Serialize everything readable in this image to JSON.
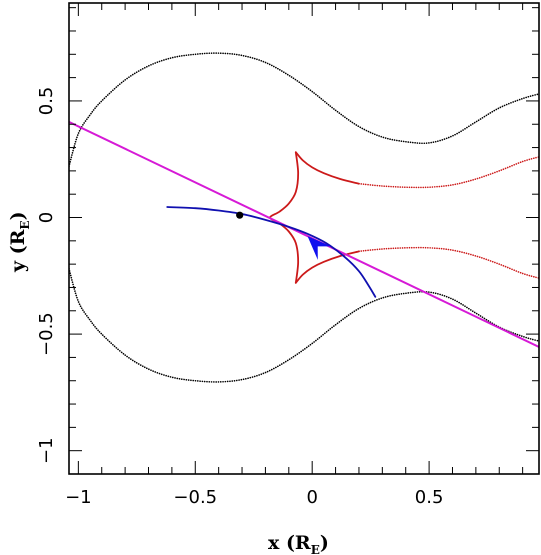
{
  "chart_data": {
    "type": "line",
    "title": "",
    "xlabel": "x (R",
    "xlabel_sub": "E",
    "xlabel_close": ")",
    "ylabel": "y (R",
    "ylabel_sub": "E",
    "ylabel_close": ")",
    "xlim": [
      -1.04,
      0.97
    ],
    "ylim": [
      -1.1,
      0.92
    ],
    "grid": false,
    "x_ticks": [
      -1,
      -0.5,
      0,
      0.5
    ],
    "x_tick_labels": [
      "−1",
      "−0.5",
      "0",
      "0.5"
    ],
    "y_ticks": [
      -1,
      -0.5,
      0,
      0.5
    ],
    "y_tick_labels": [
      "−1",
      "−0.5",
      "0",
      "0.5"
    ],
    "colors": {
      "critical": "#000000",
      "caustic": "#cc1a1a",
      "source_track": "#d61ad6",
      "lens_track": "#1010b0",
      "arrow": "#1010ee",
      "point": "#000000"
    },
    "series": [
      {
        "role": "critical-curve-upper",
        "style": "dotted",
        "x": [
          -1.04,
          -1.0,
          -0.95,
          -0.9,
          -0.8,
          -0.7,
          -0.6,
          -0.5,
          -0.4,
          -0.3,
          -0.2,
          -0.1,
          0.0,
          0.1,
          0.2,
          0.3,
          0.4,
          0.5,
          0.6,
          0.7,
          0.8,
          0.9,
          0.97
        ],
        "y": [
          0.22,
          0.36,
          0.44,
          0.5,
          0.59,
          0.65,
          0.685,
          0.7,
          0.705,
          0.695,
          0.665,
          0.61,
          0.54,
          0.46,
          0.39,
          0.345,
          0.325,
          0.32,
          0.35,
          0.41,
          0.47,
          0.51,
          0.53
        ]
      },
      {
        "role": "critical-curve-lower",
        "style": "dotted",
        "x": [
          -1.04,
          -1.0,
          -0.95,
          -0.9,
          -0.8,
          -0.7,
          -0.6,
          -0.5,
          -0.4,
          -0.3,
          -0.2,
          -0.1,
          0.0,
          0.1,
          0.2,
          0.3,
          0.4,
          0.5,
          0.6,
          0.7,
          0.8,
          0.9,
          0.97
        ],
        "y": [
          -0.22,
          -0.36,
          -0.44,
          -0.5,
          -0.59,
          -0.65,
          -0.685,
          -0.7,
          -0.705,
          -0.695,
          -0.665,
          -0.61,
          -0.54,
          -0.46,
          -0.39,
          -0.345,
          -0.325,
          -0.32,
          -0.35,
          -0.41,
          -0.47,
          -0.51,
          -0.53
        ]
      },
      {
        "role": "caustic-left",
        "style": "solid",
        "x": [
          -0.07,
          -0.06,
          -0.07,
          -0.1,
          -0.14,
          -0.18,
          -0.14,
          -0.1,
          -0.07,
          -0.06,
          -0.07
        ],
        "y": [
          0.28,
          0.19,
          0.11,
          0.06,
          0.025,
          0.0,
          -0.025,
          -0.06,
          -0.11,
          -0.19,
          -0.28
        ]
      },
      {
        "role": "caustic-upper-cusp",
        "style": "solid",
        "x": [
          -0.07,
          -0.04,
          0.0,
          0.05,
          0.12,
          0.2
        ],
        "y": [
          0.28,
          0.245,
          0.215,
          0.19,
          0.165,
          0.145
        ]
      },
      {
        "role": "caustic-lower-cusp",
        "style": "solid",
        "x": [
          -0.07,
          -0.04,
          0.0,
          0.05,
          0.12,
          0.2
        ],
        "y": [
          -0.28,
          -0.245,
          -0.215,
          -0.19,
          -0.165,
          -0.145
        ]
      },
      {
        "role": "caustic-upper-dotted",
        "style": "dotted",
        "x": [
          0.2,
          0.3,
          0.4,
          0.5,
          0.6,
          0.7,
          0.8,
          0.9,
          0.97
        ],
        "y": [
          0.145,
          0.135,
          0.13,
          0.13,
          0.14,
          0.165,
          0.2,
          0.24,
          0.26
        ]
      },
      {
        "role": "caustic-lower-dotted",
        "style": "dotted",
        "x": [
          0.2,
          0.3,
          0.4,
          0.5,
          0.6,
          0.7,
          0.8,
          0.9,
          0.97
        ],
        "y": [
          -0.145,
          -0.135,
          -0.13,
          -0.13,
          -0.14,
          -0.165,
          -0.2,
          -0.24,
          -0.26
        ]
      },
      {
        "role": "source-trajectory",
        "style": "solid",
        "x": [
          -1.04,
          0.97
        ],
        "y": [
          0.41,
          -0.555
        ]
      },
      {
        "role": "lens-trajectory",
        "style": "solid",
        "x": [
          -0.62,
          -0.5,
          -0.4,
          -0.3,
          -0.2,
          -0.1,
          -0.02,
          0.06,
          0.14,
          0.2,
          0.24,
          0.27
        ],
        "y": [
          0.045,
          0.04,
          0.03,
          0.015,
          -0.01,
          -0.04,
          -0.07,
          -0.11,
          -0.17,
          -0.23,
          -0.29,
          -0.34
        ]
      }
    ],
    "point": {
      "role": "lens-center",
      "x": -0.31,
      "y": 0.01
    },
    "arrow": {
      "role": "motion-arrow",
      "tip_x": -0.02,
      "tip_y": -0.08,
      "from_x": 0.03,
      "from_y": -0.13
    }
  }
}
